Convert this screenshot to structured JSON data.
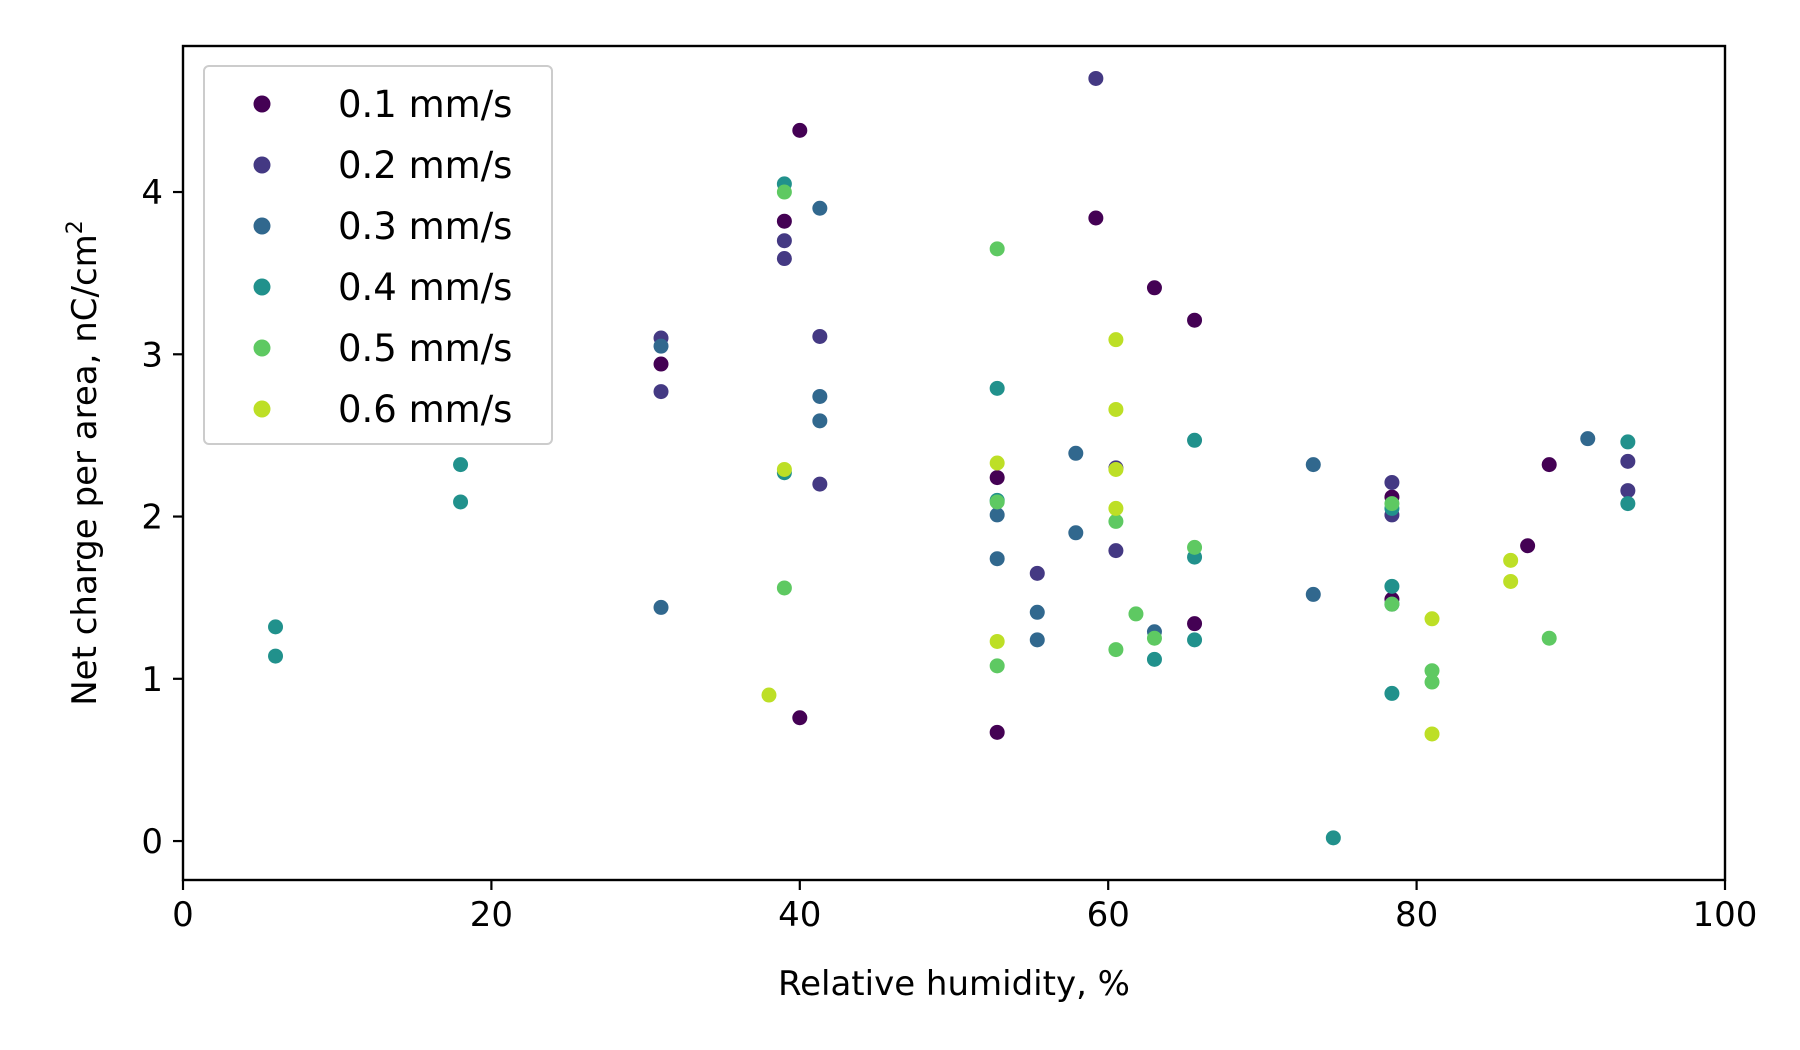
{
  "chart_data": {
    "type": "scatter",
    "title": "",
    "xlabel": "Relative humidity, %",
    "ylabel_main": "Net charge per area, nC/cm",
    "ylabel_superscript": "2",
    "xlim": [
      0,
      100
    ],
    "ylim": [
      -0.24,
      4.9
    ],
    "xticks": [
      0,
      20,
      40,
      60,
      80,
      100
    ],
    "yticks": [
      0,
      1,
      2,
      3,
      4
    ],
    "grid": false,
    "legend_position": "upper-left",
    "series": [
      {
        "name": "0.1 mm/s",
        "color": "#440154",
        "points": [
          [
            31,
            2.94
          ],
          [
            39,
            3.82
          ],
          [
            40,
            4.38
          ],
          [
            40,
            0.76
          ],
          [
            52.8,
            2.24
          ],
          [
            52.8,
            0.67
          ],
          [
            59.2,
            3.84
          ],
          [
            63,
            3.41
          ],
          [
            65.6,
            3.21
          ],
          [
            65.6,
            1.34
          ],
          [
            78.4,
            2.12
          ],
          [
            78.4,
            1.49
          ],
          [
            87.2,
            1.82
          ],
          [
            88.6,
            2.32
          ]
        ]
      },
      {
        "name": "0.2 mm/s",
        "color": "#443983",
        "points": [
          [
            31,
            3.1
          ],
          [
            31,
            2.77
          ],
          [
            39,
            3.7
          ],
          [
            39,
            3.59
          ],
          [
            41.3,
            3.11
          ],
          [
            41.3,
            2.2
          ],
          [
            55.4,
            1.65
          ],
          [
            59.2,
            4.7
          ],
          [
            60.5,
            2.3
          ],
          [
            60.5,
            1.79
          ],
          [
            78.4,
            2.21
          ],
          [
            78.4,
            2.01
          ],
          [
            93.7,
            2.34
          ],
          [
            93.7,
            2.16
          ]
        ]
      },
      {
        "name": "0.3 mm/s",
        "color": "#31688e",
        "points": [
          [
            31,
            3.05
          ],
          [
            31,
            1.44
          ],
          [
            41.3,
            3.9
          ],
          [
            41.3,
            2.74
          ],
          [
            41.3,
            2.59
          ],
          [
            52.8,
            2.01
          ],
          [
            52.8,
            1.74
          ],
          [
            55.4,
            1.41
          ],
          [
            55.4,
            1.24
          ],
          [
            57.9,
            2.39
          ],
          [
            57.9,
            1.9
          ],
          [
            63,
            1.29
          ],
          [
            73.3,
            2.32
          ],
          [
            73.3,
            1.52
          ],
          [
            78.4,
            1.46
          ],
          [
            91.1,
            2.48
          ]
        ]
      },
      {
        "name": "0.4 mm/s",
        "color": "#21918c",
        "points": [
          [
            6,
            1.32
          ],
          [
            6,
            1.14
          ],
          [
            18,
            2.32
          ],
          [
            18,
            2.09
          ],
          [
            39,
            4.05
          ],
          [
            39,
            2.27
          ],
          [
            52.8,
            2.79
          ],
          [
            52.8,
            2.1
          ],
          [
            63,
            1.12
          ],
          [
            65.6,
            2.47
          ],
          [
            65.6,
            1.75
          ],
          [
            65.6,
            1.24
          ],
          [
            74.6,
            0.02
          ],
          [
            78.4,
            2.05
          ],
          [
            78.4,
            1.57
          ],
          [
            78.4,
            0.91
          ],
          [
            93.7,
            2.46
          ],
          [
            93.7,
            2.08
          ]
        ]
      },
      {
        "name": "0.5 mm/s",
        "color": "#5ec962",
        "points": [
          [
            39,
            4.0
          ],
          [
            39,
            1.56
          ],
          [
            52.8,
            3.65
          ],
          [
            52.8,
            2.09
          ],
          [
            52.8,
            1.08
          ],
          [
            60.5,
            1.97
          ],
          [
            60.5,
            1.18
          ],
          [
            61.8,
            1.4
          ],
          [
            63,
            1.25
          ],
          [
            65.6,
            1.81
          ],
          [
            78.4,
            2.08
          ],
          [
            78.4,
            1.46
          ],
          [
            81,
            1.05
          ],
          [
            81,
            0.98
          ],
          [
            88.6,
            1.25
          ]
        ]
      },
      {
        "name": "0.6 mm/s",
        "color": "#bddf26",
        "points": [
          [
            38,
            0.9
          ],
          [
            39,
            2.29
          ],
          [
            52.8,
            2.33
          ],
          [
            52.8,
            1.23
          ],
          [
            60.5,
            3.09
          ],
          [
            60.5,
            2.66
          ],
          [
            60.5,
            2.29
          ],
          [
            60.5,
            2.05
          ],
          [
            81,
            1.37
          ],
          [
            81,
            0.66
          ],
          [
            86.1,
            1.73
          ],
          [
            86.1,
            1.6
          ]
        ]
      }
    ]
  }
}
